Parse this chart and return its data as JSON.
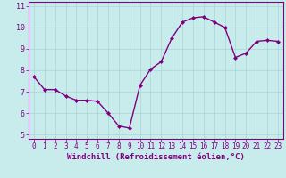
{
  "x": [
    0,
    1,
    2,
    3,
    4,
    5,
    6,
    7,
    8,
    9,
    10,
    11,
    12,
    13,
    14,
    15,
    16,
    17,
    18,
    19,
    20,
    21,
    22,
    23
  ],
  "y": [
    7.7,
    7.1,
    7.1,
    6.8,
    6.6,
    6.6,
    6.55,
    6.0,
    5.4,
    5.3,
    7.3,
    8.05,
    8.4,
    9.5,
    10.25,
    10.45,
    10.5,
    10.25,
    10.0,
    8.6,
    8.8,
    9.35,
    9.4,
    9.35
  ],
  "line_color": "#800080",
  "marker": "D",
  "marker_size": 2,
  "line_width": 1.0,
  "bg_color": "#c8ecec",
  "grid_color": "#aad4d4",
  "xlabel": "Windchill (Refroidissement éolien,°C)",
  "xlim": [
    -0.5,
    23.5
  ],
  "ylim": [
    4.8,
    11.2
  ],
  "yticks": [
    5,
    6,
    7,
    8,
    9,
    10,
    11
  ],
  "xticks": [
    0,
    1,
    2,
    3,
    4,
    5,
    6,
    7,
    8,
    9,
    10,
    11,
    12,
    13,
    14,
    15,
    16,
    17,
    18,
    19,
    20,
    21,
    22,
    23
  ],
  "tick_color": "#800080",
  "tick_fontsize": 5.5,
  "xlabel_fontsize": 6.5,
  "grid_linewidth": 0.5
}
